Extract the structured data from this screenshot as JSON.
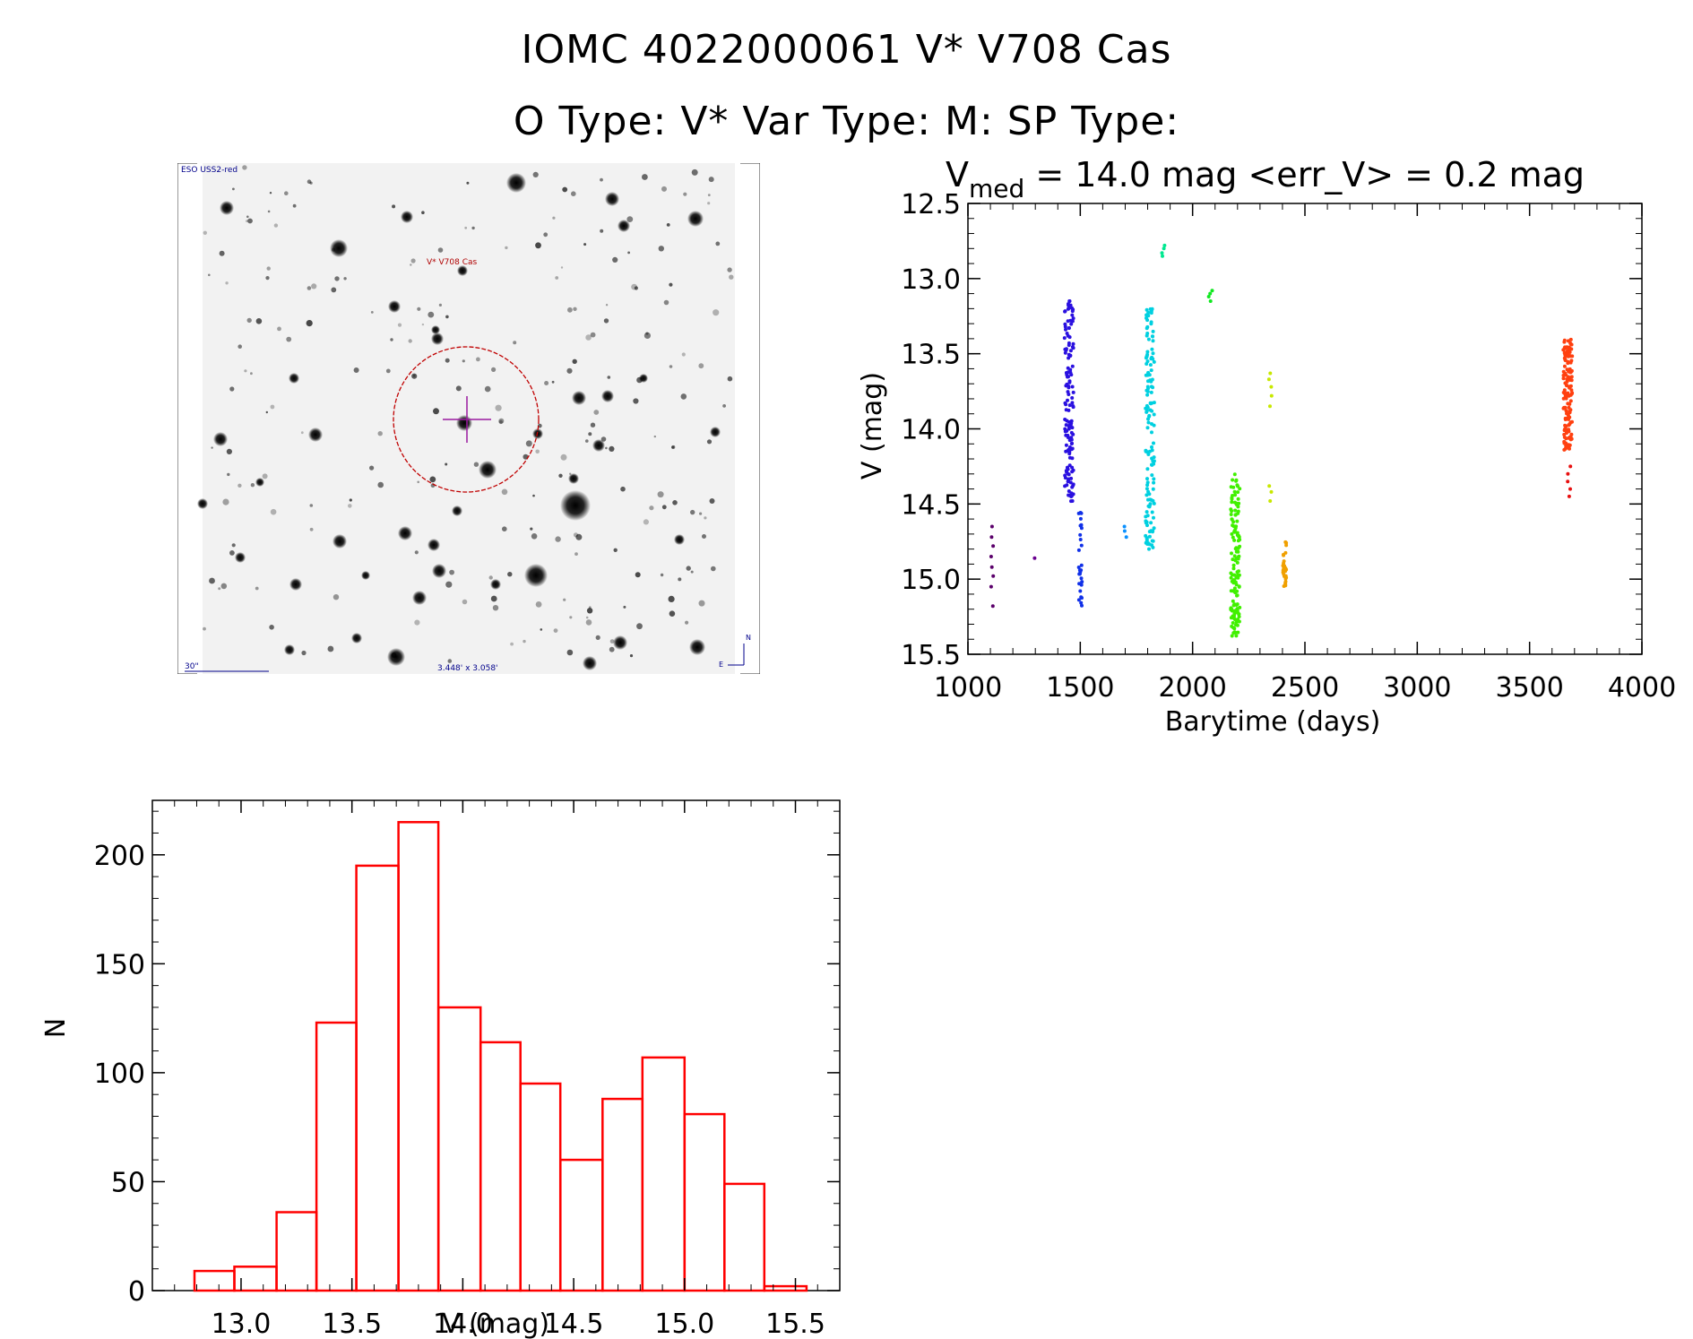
{
  "header": {
    "line1": "IOMC 4022000061    V* V708 Cas",
    "line2": "O Type: V*  Var Type: M:  SP Type:"
  },
  "finding_chart": {
    "survey_label": "ESO USS2-red",
    "object_label": "V* V708 Cas",
    "scale_label": "30\"",
    "field_label": "3.448' x 3.058'",
    "north_label": "N",
    "east_label": "E"
  },
  "chart_data": [
    {
      "type": "scatter",
      "title": "V",
      "title_subscript": "med",
      "title_rest": " = 14.0 mag <err_V> = 0.2 mag",
      "xlabel": "Barytime (days)",
      "ylabel": "V (mag)",
      "xlim": [
        1000,
        4000
      ],
      "ylim": [
        15.5,
        12.5
      ],
      "y_inverted": true,
      "xticks": [
        "1000",
        "1500",
        "2000",
        "2500",
        "3000",
        "3500",
        "4000"
      ],
      "yticks": [
        "12.5",
        "13.0",
        "13.5",
        "14.0",
        "14.5",
        "15.0",
        "15.5"
      ],
      "grid": false,
      "groups": [
        {
          "color": "#5b006b",
          "x": 1110,
          "y_values": [
            14.65,
            14.72,
            14.78,
            14.85,
            14.92,
            14.98,
            15.05,
            15.18
          ]
        },
        {
          "color": "#6a0090",
          "x": 1290,
          "y_values": [
            14.86
          ]
        },
        {
          "color": "#2a10e0",
          "x": 1450,
          "y_range": [
            13.15,
            14.5
          ],
          "dense": true
        },
        {
          "color": "#1030e8",
          "x": 1500,
          "y_range": [
            14.55,
            15.25
          ],
          "dense": false
        },
        {
          "color": "#0a90ff",
          "x": 1700,
          "y_values": [
            14.65,
            14.68,
            14.72
          ]
        },
        {
          "color": "#00d0e0",
          "x": 1810,
          "y_range": [
            13.2,
            14.8
          ],
          "dense": true
        },
        {
          "color": "#00e890",
          "x": 1870,
          "y_values": [
            12.78,
            12.8,
            12.83,
            12.85
          ]
        },
        {
          "color": "#10e820",
          "x": 2080,
          "y_values": [
            13.08,
            13.1,
            13.12,
            13.15
          ]
        },
        {
          "color": "#40f000",
          "x": 2190,
          "y_range": [
            14.3,
            15.4
          ],
          "dense": true
        },
        {
          "color": "#c8e800",
          "x": 2345,
          "y_values": [
            13.63,
            13.67,
            13.72,
            13.78,
            13.85,
            14.38,
            14.42,
            14.48
          ]
        },
        {
          "color": "#f0a000",
          "x": 2410,
          "y_range": [
            14.75,
            15.05
          ],
          "dense": false
        },
        {
          "color": "#ff4010",
          "x": 3670,
          "y_range": [
            13.4,
            14.15
          ],
          "dense": true
        },
        {
          "color": "#e81010",
          "x": 3675,
          "y_values": [
            14.25,
            14.3,
            14.35,
            14.4,
            14.45
          ]
        }
      ]
    },
    {
      "type": "bar",
      "subtype": "histogram",
      "xlabel": "V (mag)",
      "ylabel": "N",
      "xlim": [
        12.6,
        15.7
      ],
      "ylim": [
        0,
        225
      ],
      "xticks": [
        "13.0",
        "13.5",
        "14.0",
        "14.5",
        "15.0",
        "15.5"
      ],
      "yticks": [
        "0",
        "50",
        "100",
        "150",
        "200"
      ],
      "bar_color": "#ff0000",
      "bins": [
        {
          "x0": 12.79,
          "x1": 12.97,
          "count": 9
        },
        {
          "x0": 12.97,
          "x1": 13.16,
          "count": 11
        },
        {
          "x0": 13.16,
          "x1": 13.34,
          "count": 36
        },
        {
          "x0": 13.34,
          "x1": 13.52,
          "count": 123
        },
        {
          "x0": 13.52,
          "x1": 13.71,
          "count": 195
        },
        {
          "x0": 13.71,
          "x1": 13.89,
          "count": 215
        },
        {
          "x0": 13.89,
          "x1": 14.08,
          "count": 130
        },
        {
          "x0": 14.08,
          "x1": 14.26,
          "count": 114
        },
        {
          "x0": 14.26,
          "x1": 14.44,
          "count": 95
        },
        {
          "x0": 14.44,
          "x1": 14.63,
          "count": 60
        },
        {
          "x0": 14.63,
          "x1": 14.81,
          "count": 88
        },
        {
          "x0": 14.81,
          "x1": 15.0,
          "count": 107
        },
        {
          "x0": 15.0,
          "x1": 15.18,
          "count": 81
        },
        {
          "x0": 15.18,
          "x1": 15.36,
          "count": 49
        },
        {
          "x0": 15.36,
          "x1": 15.55,
          "count": 2
        }
      ]
    }
  ]
}
